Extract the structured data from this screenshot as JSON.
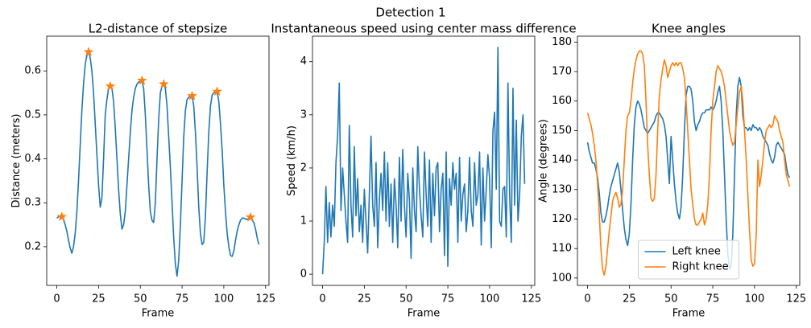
{
  "suptitle": "Detection 1",
  "chart_data": [
    {
      "type": "line",
      "title": "L2-distance of stepsize",
      "x_label": "Frame",
      "y_label": "Distance (meters)",
      "xlim": [
        -6.05,
        127.05
      ],
      "xticks": [
        0,
        25,
        50,
        75,
        100,
        125
      ],
      "ylim": [
        0.112,
        0.679
      ],
      "yticks": [
        0.2,
        0.3,
        0.4,
        0.5,
        0.6
      ],
      "x": [
        0,
        1,
        2,
        3,
        4,
        5,
        6,
        7,
        8,
        9,
        10,
        11,
        12,
        13,
        14,
        15,
        16,
        17,
        18,
        19,
        20,
        21,
        22,
        23,
        24,
        25,
        26,
        27,
        28,
        29,
        30,
        31,
        32,
        33,
        34,
        35,
        36,
        37,
        38,
        39,
        40,
        41,
        42,
        43,
        44,
        45,
        46,
        47,
        48,
        49,
        50,
        51,
        52,
        53,
        54,
        55,
        56,
        57,
        58,
        59,
        60,
        61,
        62,
        63,
        64,
        65,
        66,
        67,
        68,
        69,
        70,
        71,
        72,
        73,
        74,
        75,
        76,
        77,
        78,
        79,
        80,
        81,
        82,
        83,
        84,
        85,
        86,
        87,
        88,
        89,
        90,
        91,
        92,
        93,
        94,
        95,
        96,
        97,
        98,
        99,
        100,
        101,
        102,
        103,
        104,
        105,
        106,
        107,
        108,
        109,
        110,
        111,
        112,
        113,
        114,
        115,
        116,
        117,
        118,
        119,
        120,
        121
      ],
      "series": [
        {
          "color": "#1f77b4",
          "values": [
            0.265,
            0.268,
            0.27,
            0.268,
            0.262,
            0.25,
            0.235,
            0.215,
            0.197,
            0.185,
            0.2,
            0.23,
            0.28,
            0.35,
            0.43,
            0.51,
            0.57,
            0.615,
            0.635,
            0.643,
            0.63,
            0.6,
            0.55,
            0.48,
            0.41,
            0.34,
            0.29,
            0.31,
            0.4,
            0.5,
            0.535,
            0.56,
            0.565,
            0.56,
            0.53,
            0.47,
            0.4,
            0.33,
            0.275,
            0.24,
            0.25,
            0.28,
            0.34,
            0.4,
            0.46,
            0.51,
            0.54,
            0.56,
            0.57,
            0.575,
            0.575,
            0.578,
            0.56,
            0.5,
            0.42,
            0.34,
            0.28,
            0.26,
            0.255,
            0.3,
            0.4,
            0.49,
            0.55,
            0.565,
            0.57,
            0.56,
            0.52,
            0.45,
            0.38,
            0.3,
            0.22,
            0.16,
            0.133,
            0.17,
            0.25,
            0.35,
            0.45,
            0.51,
            0.535,
            0.54,
            0.543,
            0.543,
            0.52,
            0.46,
            0.38,
            0.29,
            0.23,
            0.205,
            0.21,
            0.27,
            0.37,
            0.46,
            0.52,
            0.545,
            0.55,
            0.553,
            0.553,
            0.53,
            0.48,
            0.42,
            0.34,
            0.28,
            0.23,
            0.2,
            0.18,
            0.178,
            0.19,
            0.215,
            0.235,
            0.25,
            0.26,
            0.265,
            0.265,
            0.263,
            0.262,
            0.265,
            0.267,
            0.26,
            0.255,
            0.24,
            0.22,
            0.205
          ]
        },
        {
          "color": "#ff7f0e",
          "marker": "star",
          "x": [
            3,
            19,
            32,
            51,
            64,
            81,
            96,
            116
          ],
          "values": [
            0.268,
            0.643,
            0.565,
            0.578,
            0.57,
            0.543,
            0.553,
            0.267
          ]
        }
      ]
    },
    {
      "type": "line",
      "title": "Instantaneous speed using center mass difference",
      "x_label": "Frame",
      "y_label": "Speed (km/h)",
      "xlim": [
        -6.05,
        127.05
      ],
      "xticks": [
        0,
        25,
        50,
        75,
        100,
        125
      ],
      "ylim": [
        -0.21,
        4.48
      ],
      "yticks": [
        0,
        1,
        2,
        3,
        4
      ],
      "x": [
        0,
        1,
        2,
        3,
        4,
        5,
        6,
        7,
        8,
        9,
        10,
        11,
        12,
        13,
        14,
        15,
        16,
        17,
        18,
        19,
        20,
        21,
        22,
        23,
        24,
        25,
        26,
        27,
        28,
        29,
        30,
        31,
        32,
        33,
        34,
        35,
        36,
        37,
        38,
        39,
        40,
        41,
        42,
        43,
        44,
        45,
        46,
        47,
        48,
        49,
        50,
        51,
        52,
        53,
        54,
        55,
        56,
        57,
        58,
        59,
        60,
        61,
        62,
        63,
        64,
        65,
        66,
        67,
        68,
        69,
        70,
        71,
        72,
        73,
        74,
        75,
        76,
        77,
        78,
        79,
        80,
        81,
        82,
        83,
        84,
        85,
        86,
        87,
        88,
        89,
        90,
        91,
        92,
        93,
        94,
        95,
        96,
        97,
        98,
        99,
        100,
        101,
        102,
        103,
        104,
        105,
        106,
        107,
        108,
        109,
        110,
        111,
        112,
        113,
        114,
        115,
        116,
        117,
        118,
        119,
        120,
        121
      ],
      "series": [
        {
          "color": "#1f77b4",
          "values": [
            0,
            0.6,
            1.65,
            0.6,
            1.35,
            0.7,
            1.3,
            0.9,
            2.1,
            2.6,
            3.6,
            1.2,
            2.0,
            1.5,
            1.0,
            0.6,
            2.8,
            1.3,
            0.7,
            2.4,
            1.1,
            1.8,
            0.8,
            1.3,
            0.6,
            1.6,
            1.0,
            0.4,
            1.5,
            2.6,
            1.3,
            0.9,
            2.1,
            0.5,
            1.4,
            1.9,
            1.2,
            2.3,
            1.0,
            2.1,
            0.9,
            1.7,
            0.6,
            1.8,
            1.3,
            0.5,
            2.2,
            1.0,
            2.35,
            1.3,
            0.7,
            1.9,
            1.4,
            0.3,
            2.0,
            1.2,
            0.8,
            2.4,
            1.6,
            1.1,
            0.7,
            2.3,
            1.5,
            0.9,
            2.15,
            0.6,
            1.9,
            1.1,
            2.0,
            2.1,
            0.8,
            1.6,
            1.9,
            0.35,
            2.3,
            0.15,
            1.8,
            1.3,
            2.1,
            1.6,
            1.9,
            0.6,
            2.2,
            1.0,
            1.5,
            1.7,
            0.8,
            1.2,
            2.2,
            1.2,
            0.9,
            2.1,
            1.3,
            1.5,
            2.3,
            0.55,
            2.0,
            1.0,
            1.6,
            2.25,
            1.8,
            0.5,
            2.7,
            3.05,
            1.6,
            4.27,
            1.0,
            0.9,
            1.6,
            1.65,
            0.7,
            3.6,
            1.5,
            0.6,
            3.5,
            1.3,
            2.9,
            1.0,
            1.5,
            2.6,
            3.0,
            1.7
          ]
        }
      ]
    },
    {
      "type": "line",
      "title": "Knee angles",
      "x_label": "Frame",
      "y_label": "Angle (degrees)",
      "xlim": [
        -6.05,
        127.05
      ],
      "xticks": [
        0,
        25,
        50,
        75,
        100,
        125
      ],
      "ylim": [
        97.5,
        182
      ],
      "yticks": [
        100,
        110,
        120,
        130,
        140,
        150,
        160,
        170,
        180
      ],
      "legend": "lower center",
      "x": [
        0,
        1,
        2,
        3,
        4,
        5,
        6,
        7,
        8,
        9,
        10,
        11,
        12,
        13,
        14,
        15,
        16,
        17,
        18,
        19,
        20,
        21,
        22,
        23,
        24,
        25,
        26,
        27,
        28,
        29,
        30,
        31,
        32,
        33,
        34,
        35,
        36,
        37,
        38,
        39,
        40,
        41,
        42,
        43,
        44,
        45,
        46,
        47,
        48,
        49,
        50,
        51,
        52,
        53,
        54,
        55,
        56,
        57,
        58,
        59,
        60,
        61,
        62,
        63,
        64,
        65,
        66,
        67,
        68,
        69,
        70,
        71,
        72,
        73,
        74,
        75,
        76,
        77,
        78,
        79,
        80,
        81,
        82,
        83,
        84,
        85,
        86,
        87,
        88,
        89,
        90,
        91,
        92,
        93,
        94,
        95,
        96,
        97,
        98,
        99,
        100,
        101,
        102,
        103,
        104,
        105,
        106,
        107,
        108,
        109,
        110,
        111,
        112,
        113,
        114,
        115,
        116,
        117,
        118,
        119,
        120,
        121
      ],
      "series": [
        {
          "name": "Left knee",
          "color": "#1f77b4",
          "values": [
            146,
            143,
            141,
            139,
            139,
            137,
            134,
            129,
            122,
            119,
            119,
            121,
            124,
            128,
            131,
            133,
            135,
            137,
            139,
            136,
            130,
            123,
            117,
            113,
            111,
            115,
            125,
            140,
            152,
            158,
            160,
            159,
            157,
            154,
            151,
            150,
            149,
            150,
            151,
            152,
            153,
            155,
            156,
            156,
            155,
            154,
            152,
            148,
            140,
            132,
            148,
            140,
            132,
            126,
            122,
            120,
            124,
            135,
            150,
            162,
            165,
            165,
            164,
            160,
            153,
            150,
            152,
            153,
            155,
            156,
            156,
            157,
            157,
            157,
            158,
            157,
            158,
            160,
            163,
            165,
            160,
            150,
            135,
            120,
            108,
            103,
            104,
            115,
            135,
            155,
            165,
            168,
            165,
            155,
            151,
            151,
            150,
            151,
            150,
            152,
            151,
            151,
            150,
            151,
            150,
            148,
            147,
            146,
            145,
            142,
            140,
            139,
            141,
            145,
            146,
            145,
            144,
            143,
            142,
            138,
            135,
            134
          ]
        },
        {
          "name": "Right knee",
          "color": "#ff7f0e",
          "values": [
            156,
            154,
            152,
            149,
            145,
            140,
            132,
            122,
            110,
            103,
            101,
            104,
            110,
            116,
            121,
            126,
            128,
            129,
            127,
            124,
            125,
            130,
            140,
            150,
            155,
            156,
            160,
            166,
            171,
            174,
            176,
            177,
            177,
            176,
            172,
            160,
            145,
            135,
            127,
            126,
            127,
            135,
            150,
            162,
            167,
            171,
            174,
            172,
            168,
            170,
            172,
            173,
            172,
            173,
            172,
            173,
            173,
            171,
            168,
            160,
            150,
            140,
            130,
            125,
            120,
            118,
            118,
            119,
            120,
            122,
            118,
            120,
            125,
            135,
            150,
            160,
            165,
            170,
            172,
            171,
            170,
            168,
            165,
            160,
            155,
            150,
            147,
            145,
            146,
            152,
            158,
            163,
            165,
            160,
            150,
            140,
            128,
            116,
            106,
            104,
            105,
            115,
            140,
            131,
            135,
            140,
            146,
            150,
            151,
            152,
            151,
            152,
            155,
            154,
            153,
            150,
            148,
            146,
            140,
            135,
            133,
            131
          ]
        }
      ]
    }
  ]
}
